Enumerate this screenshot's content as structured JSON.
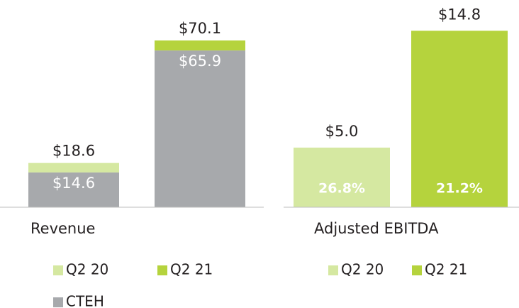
{
  "chart_data": [
    {
      "type": "stacked_bar",
      "x_label": "Revenue",
      "categories": [
        null,
        null
      ],
      "series": [
        {
          "name": "Q2 20",
          "color": "#d5e8a1",
          "values": [
            4.0,
            null
          ]
        },
        {
          "name": "Q2 21",
          "color": "#b5d33d",
          "values": [
            null,
            4.2
          ]
        },
        {
          "name": "CTEH",
          "color": "#a7a9ac",
          "values": [
            14.6,
            65.9
          ],
          "value_labels": [
            "$14.6",
            "$65.9"
          ]
        }
      ],
      "totals": [
        18.6,
        70.1
      ],
      "total_labels": [
        "$18.6",
        "$70.1"
      ],
      "ylim": [
        0,
        75
      ]
    },
    {
      "type": "bar",
      "x_label": "Adjusted EBITDA",
      "categories": [
        null,
        null
      ],
      "series": [
        {
          "name": "Q2 20",
          "color": "#d5e8a1",
          "values": [
            5.0,
            null
          ],
          "value_labels": [
            "$5.0",
            null
          ]
        },
        {
          "name": "Q2 21",
          "color": "#b5d33d",
          "values": [
            null,
            14.8
          ],
          "value_labels": [
            null,
            "$14.8"
          ]
        }
      ],
      "margins": [
        26.8,
        21.2
      ],
      "margin_labels": [
        "26.8%",
        "21.2%"
      ],
      "ylim": [
        0,
        15
      ]
    }
  ]
}
